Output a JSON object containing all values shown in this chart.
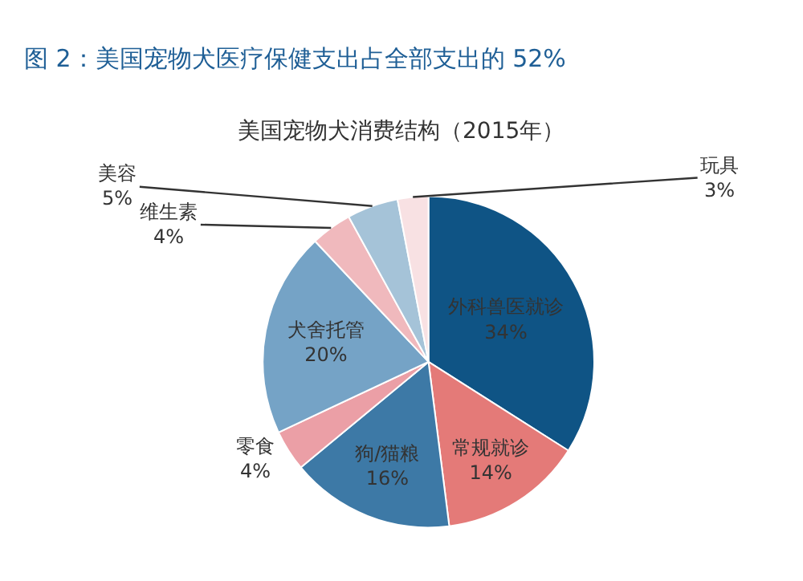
{
  "chart_data": {
    "type": "pie",
    "title": "图 2：美国宠物犬医疗保健支出占全部支出的 52%",
    "subtitle": "美国宠物犬消费结构（2015年）",
    "categories": [
      "外科兽医就诊",
      "常规就诊",
      "狗/猫粮",
      "零食",
      "犬舍托管",
      "维生素",
      "美容",
      "玩具"
    ],
    "values": [
      34,
      14,
      16,
      4,
      20,
      4,
      5,
      3
    ],
    "value_labels": [
      "34%",
      "14%",
      "16%",
      "4%",
      "20%",
      "4%",
      "5%",
      "3%"
    ],
    "colors": [
      "#0f5485",
      "#e47a78",
      "#3d79a6",
      "#eb9fa6",
      "#75a3c6",
      "#f0b9bd",
      "#a5c3d8",
      "#f8e1e3"
    ],
    "legend": false
  }
}
